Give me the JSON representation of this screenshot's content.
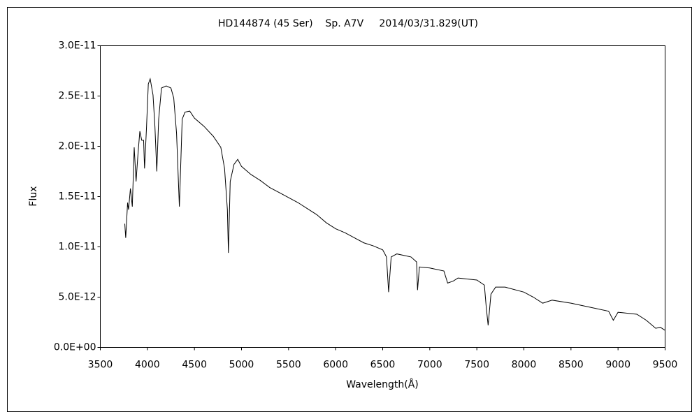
{
  "chart_data": {
    "type": "line",
    "title": "HD144874 (45 Ser)    Sp. A7V     2014/03/31.829(UT)",
    "x_label": "Wavelength(Å)",
    "y_label": "Flux",
    "color": "#000000",
    "xlim": [
      3500,
      9500
    ],
    "xticks": [
      3500,
      4000,
      4500,
      5000,
      5500,
      6000,
      6500,
      7000,
      7500,
      8000,
      8500,
      9000,
      9500
    ],
    "ylim": [
      0,
      3e-11
    ],
    "yticks": [
      {
        "value": 0,
        "label": "0.0E+00"
      },
      {
        "value": 5e-12,
        "label": "5.0E-12"
      },
      {
        "value": 1e-11,
        "label": "1.0E-11"
      },
      {
        "value": 1.5e-11,
        "label": "1.5E-11"
      },
      {
        "value": 2e-11,
        "label": "2.0E-11"
      },
      {
        "value": 2.5e-11,
        "label": "2.5E-11"
      },
      {
        "value": 3e-11,
        "label": "3.0E-11"
      }
    ],
    "grid": false,
    "x": [
      3760,
      3770,
      3790,
      3800,
      3820,
      3840,
      3860,
      3880,
      3900,
      3920,
      3940,
      3960,
      3970,
      3990,
      4010,
      4030,
      4060,
      4080,
      4100,
      4120,
      4150,
      4200,
      4250,
      4280,
      4310,
      4340,
      4370,
      4400,
      4450,
      4500,
      4600,
      4700,
      4780,
      4820,
      4850,
      4861,
      4880,
      4920,
      4960,
      5000,
      5100,
      5200,
      5300,
      5400,
      5500,
      5600,
      5700,
      5800,
      5900,
      6000,
      6100,
      6200,
      6300,
      6400,
      6500,
      6540,
      6563,
      6590,
      6650,
      6800,
      6860,
      6870,
      6890,
      7000,
      7150,
      7190,
      7250,
      7300,
      7500,
      7580,
      7600,
      7620,
      7650,
      7700,
      7800,
      8000,
      8100,
      8200,
      8300,
      8500,
      8700,
      8900,
      8950,
      9000,
      9200,
      9300,
      9400,
      9450,
      9500
    ],
    "values": [
      1.23e-11,
      1.09e-11,
      1.44e-11,
      1.37e-11,
      1.58e-11,
      1.4e-11,
      1.99e-11,
      1.65e-11,
      1.92e-11,
      2.15e-11,
      2.06e-11,
      2.06e-11,
      1.78e-11,
      2.17e-11,
      2.62e-11,
      2.67e-11,
      2.51e-11,
      2.2e-11,
      1.75e-11,
      2.27e-11,
      2.58e-11,
      2.6e-11,
      2.58e-11,
      2.48e-11,
      2.13e-11,
      1.4e-11,
      2.27e-11,
      2.34e-11,
      2.35e-11,
      2.28e-11,
      2.2e-11,
      2.1e-11,
      1.99e-11,
      1.78e-11,
      1.37e-11,
      9.4e-12,
      1.65e-11,
      1.82e-11,
      1.87e-11,
      1.8e-11,
      1.72e-11,
      1.66e-11,
      1.59e-11,
      1.54e-11,
      1.49e-11,
      1.44e-11,
      1.38e-11,
      1.32e-11,
      1.24e-11,
      1.18e-11,
      1.14e-11,
      1.09e-11,
      1.04e-11,
      1.01e-11,
      9.7e-12,
      9e-12,
      5.5e-12,
      9e-12,
      9.3e-12,
      9e-12,
      8.5e-12,
      5.7e-12,
      8e-12,
      7.9e-12,
      7.6e-12,
      6.4e-12,
      6.6e-12,
      6.9e-12,
      6.7e-12,
      6.2e-12,
      4e-12,
      2.2e-12,
      5.3e-12,
      6e-12,
      6e-12,
      5.5e-12,
      5e-12,
      4.4e-12,
      4.7e-12,
      4.4e-12,
      4e-12,
      3.6e-12,
      2.7e-12,
      3.5e-12,
      3.3e-12,
      2.7e-12,
      1.9e-12,
      2e-12,
      1.7e-12
    ]
  }
}
